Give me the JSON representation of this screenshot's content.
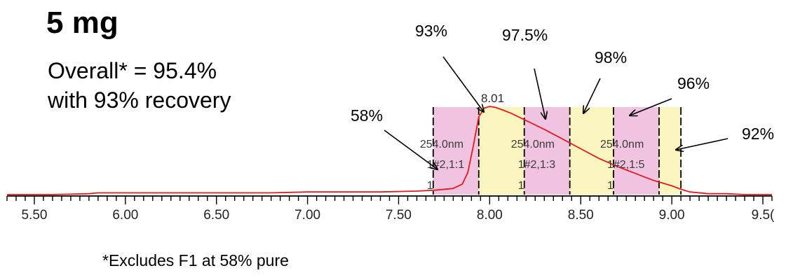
{
  "title": "5 mg",
  "summary": {
    "line1": "Overall* = 95.4%",
    "line2": "with 93% recovery"
  },
  "footnote": "*Excludes F1 at 58% pure",
  "colors": {
    "trace": "#e41a1c",
    "fraction_pink": "#f0c4e0",
    "fraction_yellow": "#fbf6c0",
    "axis": "#000000"
  },
  "chart_data": {
    "type": "line",
    "xlim": [
      5.35,
      9.55
    ],
    "xticks": [
      5.5,
      6.0,
      6.5,
      7.0,
      7.5,
      8.0,
      8.5,
      9.0,
      9.5
    ],
    "xtick_labels": [
      "5.50",
      "6.00",
      "6.50",
      "7.00",
      "7.50",
      "8.00",
      "8.50",
      "9.00",
      "9.5("
    ],
    "trace": {
      "x": [
        5.35,
        5.6,
        5.8,
        5.85,
        6.0,
        6.2,
        6.5,
        6.8,
        7.0,
        7.2,
        7.4,
        7.6,
        7.7,
        7.8,
        7.85,
        7.88,
        7.91,
        7.94,
        7.97,
        8.0,
        8.03,
        8.07,
        8.12,
        8.2,
        8.3,
        8.4,
        8.5,
        8.6,
        8.7,
        8.8,
        8.9,
        9.0,
        9.05,
        9.1,
        9.2,
        9.3,
        9.4,
        9.55
      ],
      "y": [
        0.0,
        0.0,
        0.01,
        0.02,
        0.02,
        0.02,
        0.02,
        0.02,
        0.03,
        0.03,
        0.03,
        0.04,
        0.05,
        0.07,
        0.12,
        0.25,
        0.55,
        0.88,
        0.98,
        1.0,
        0.99,
        0.96,
        0.92,
        0.84,
        0.74,
        0.63,
        0.52,
        0.41,
        0.32,
        0.24,
        0.16,
        0.1,
        0.06,
        0.03,
        0.01,
        0.01,
        0.0,
        0.0
      ]
    },
    "peak_label": {
      "text": "8.01",
      "x": 8.01
    },
    "fractions": [
      {
        "start": 7.69,
        "end": 7.94,
        "color": "pink"
      },
      {
        "start": 7.94,
        "end": 8.19,
        "color": "yellow"
      },
      {
        "start": 8.19,
        "end": 8.44,
        "color": "pink"
      },
      {
        "start": 8.44,
        "end": 8.68,
        "color": "yellow"
      },
      {
        "start": 8.68,
        "end": 8.93,
        "color": "pink"
      },
      {
        "start": 8.93,
        "end": 9.05,
        "color": "yellow"
      }
    ],
    "fraction_labels": [
      {
        "x": 7.69,
        "line1": "254.0nm",
        "line2": "1#2,1:1",
        "line3": "1"
      },
      {
        "x": 8.19,
        "line1": "254.0nm",
        "line2": "1#2,1:3",
        "line3": "1"
      },
      {
        "x": 8.68,
        "line1": "254.0nm",
        "line2": "1#2,1:5",
        "line3": "1"
      }
    ],
    "annotations": [
      {
        "text": "58%",
        "fraction": 1
      },
      {
        "text": "93%",
        "fraction": 2
      },
      {
        "text": "97.5%",
        "fraction": 3
      },
      {
        "text": "98%",
        "fraction": 4
      },
      {
        "text": "96%",
        "fraction": 5
      },
      {
        "text": "92%",
        "fraction": 6
      }
    ]
  }
}
